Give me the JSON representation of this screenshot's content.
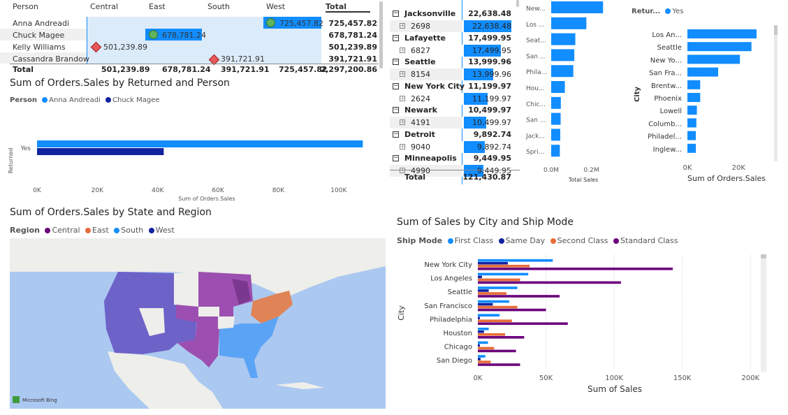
{
  "matrix": {
    "headers": [
      "Person",
      "Central",
      "East",
      "South",
      "West",
      "Total"
    ],
    "rows": [
      {
        "name": "Anna Andreadi",
        "west": "725,457.82",
        "total": "725,457.82"
      },
      {
        "name": "Chuck Magee",
        "east": "678,781.24",
        "total": "678,781.24"
      },
      {
        "name": "Kelly Williams",
        "central": "501,239.89",
        "total": "501,239.89"
      },
      {
        "name": "Cassandra Brandow",
        "south": "391,721.91",
        "total": "391,721.91"
      }
    ],
    "total_row": {
      "label": "Total",
      "central": "501,239.89",
      "east": "678,781.24",
      "south": "391,721.91",
      "west": "725,457.82",
      "total": "2,297,200.86"
    }
  },
  "returned_chart": {
    "title": "Sum of Orders.Sales by Returned and Person",
    "legend_title": "Person",
    "legend": [
      {
        "name": "Anna Andreadi",
        "color": "#118DFF"
      },
      {
        "name": "Chuck Magee",
        "color": "#12239E"
      }
    ],
    "ylabel": "Returned",
    "xlabel": "Sum of Orders.Sales",
    "category": "Yes",
    "ticks": [
      "0K",
      "20K",
      "40K",
      "60K",
      "80K",
      "100K"
    ],
    "chart_data": {
      "type": "bar",
      "categories": [
        "Yes"
      ],
      "series": [
        {
          "name": "Anna Andreadi",
          "values": [
            108000
          ]
        },
        {
          "name": "Chuck Magee",
          "values": [
            42000
          ]
        }
      ],
      "xlim": [
        0,
        110000
      ]
    }
  },
  "city_table": {
    "rows": [
      {
        "city": "Jacksonville",
        "total": "22,638.48",
        "id": "2698",
        "value": "22,638.48",
        "frac": 1.0
      },
      {
        "city": "Lafayette",
        "total": "17,499.95",
        "id": "6827",
        "value": "17,499.95",
        "frac": 0.773
      },
      {
        "city": "Seattle",
        "total": "13,999.96",
        "id": "8154",
        "value": "13,999.96",
        "frac": 0.618
      },
      {
        "city": "New York City",
        "total": "11,199.97",
        "id": "2624",
        "value": "11,199.97",
        "frac": 0.495
      },
      {
        "city": "Newark",
        "total": "10,499.97",
        "id": "4191",
        "value": "10,499.97",
        "frac": 0.464
      },
      {
        "city": "Detroit",
        "total": "9,892.74",
        "id": "9040",
        "value": "9,892.74",
        "frac": 0.437
      },
      {
        "city": "Minneapolis",
        "total": "9,449.95",
        "id": "4990",
        "value": "9,449.95",
        "frac": 0.417
      }
    ],
    "total_label": "Total",
    "total_value": "121,430.87"
  },
  "total_sales_chart": {
    "xlabel": "Total Sales",
    "ticks": [
      "0.0M",
      "0.2M"
    ],
    "chart_data": {
      "type": "bar",
      "categories": [
        "New...",
        "Los ...",
        "Seat...",
        "San ...",
        "Phila...",
        "Hou...",
        "Chic...",
        "San ...",
        "Jack...",
        "Spri..."
      ],
      "values": [
        0.258,
        0.175,
        0.12,
        0.115,
        0.11,
        0.068,
        0.048,
        0.047,
        0.045,
        0.043
      ],
      "xlim": [
        0,
        0.33
      ]
    }
  },
  "returned_city_chart": {
    "legend_title": "Retur...",
    "legend": [
      {
        "name": "Yes",
        "color": "#118DFF"
      }
    ],
    "ylabel": "City",
    "xlabel": "Sum of Orders.Sales",
    "ticks": [
      "0K",
      "20K"
    ],
    "chart_data": {
      "type": "bar",
      "categories": [
        "Los An...",
        "Seattle",
        "New Yo...",
        "San Fra...",
        "Brentw...",
        "Phoenix",
        "Lowell",
        "Columb...",
        "Philadel...",
        "Inglew..."
      ],
      "values": [
        27000,
        25000,
        20500,
        12000,
        5000,
        5000,
        3700,
        3500,
        3300,
        3300
      ],
      "xlim": [
        0,
        33000
      ]
    }
  },
  "map": {
    "title": "Sum of Orders.Sales by State and Region",
    "legend_title": "Region",
    "legend": [
      {
        "name": "Central",
        "color": "#6B007B"
      },
      {
        "name": "East",
        "color": "#E66C37"
      },
      {
        "name": "South",
        "color": "#118DFF"
      },
      {
        "name": "West",
        "color": "#12239E"
      }
    ],
    "attribution": "Microsoft Bing"
  },
  "shipmode_chart": {
    "title": "Sum of Sales by City and Ship Mode",
    "legend_title": "Ship Mode",
    "legend": [
      {
        "name": "First Class",
        "color": "#118DFF"
      },
      {
        "name": "Same Day",
        "color": "#12239E"
      },
      {
        "name": "Second Class",
        "color": "#E66C37"
      },
      {
        "name": "Standard Class",
        "color": "#6B007B"
      }
    ],
    "ylabel": "City",
    "xlabel": "Sum of Sales",
    "ticks": [
      "0K",
      "50K",
      "100K",
      "150K",
      "200K"
    ],
    "chart_data": {
      "type": "bar",
      "categories": [
        "New York City",
        "Los Angeles",
        "Seattle",
        "San Francisco",
        "Philadelphia",
        "Houston",
        "Chicago",
        "San Diego"
      ],
      "series": [
        {
          "name": "First Class",
          "values": [
            55000,
            37000,
            29000,
            23000,
            16000,
            8000,
            7500,
            5500
          ]
        },
        {
          "name": "Same Day",
          "values": [
            22000,
            3000,
            8000,
            11000,
            1500,
            4500,
            1500,
            2000
          ]
        },
        {
          "name": "Second Class",
          "values": [
            38000,
            31000,
            21000,
            29000,
            25000,
            20000,
            12000,
            9500
          ]
        },
        {
          "name": "Standard Class",
          "values": [
            143000,
            105000,
            60000,
            50000,
            66000,
            34000,
            28000,
            31000
          ]
        }
      ],
      "xlim": [
        0,
        205000
      ]
    }
  }
}
